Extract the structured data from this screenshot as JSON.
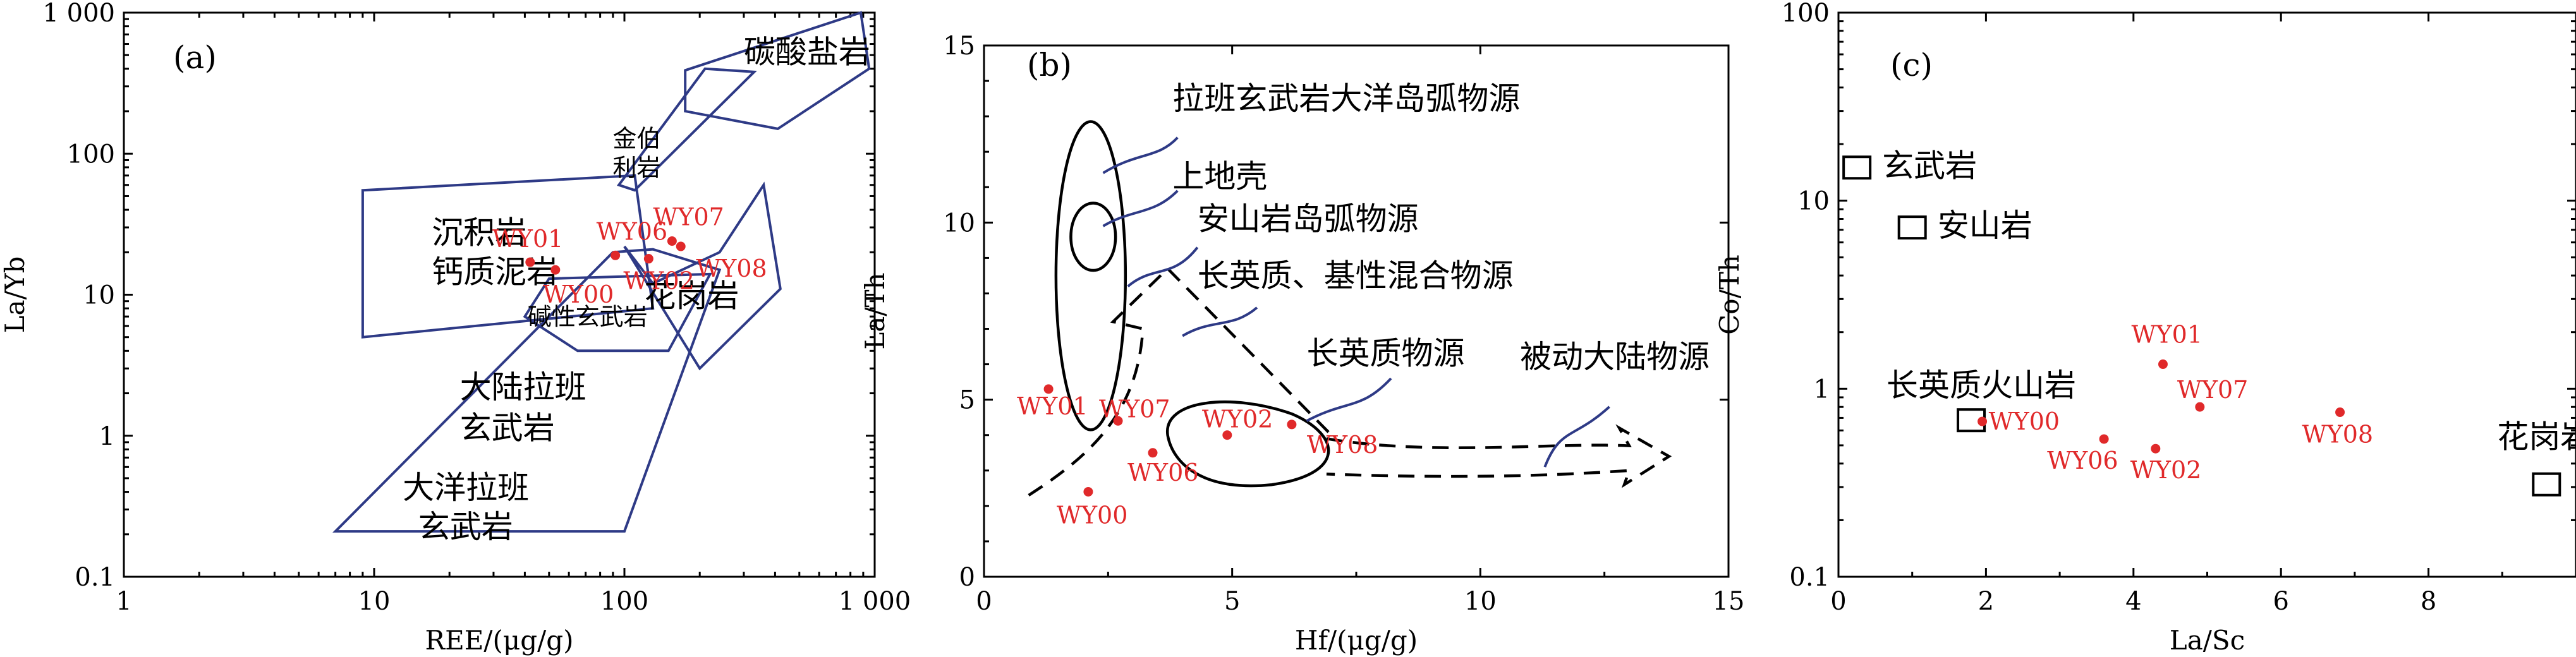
{
  "chart_data": [
    {
      "type": "scatter",
      "panel_label": "(a)",
      "xlabel": "REE/(μg/g)",
      "ylabel": "La/Yb",
      "x_scale": "log",
      "y_scale": "log",
      "xlim": [
        1,
        1000
      ],
      "ylim": [
        0.1,
        1000
      ],
      "x_ticks": [
        {
          "v": 1,
          "label": "1"
        },
        {
          "v": 10,
          "label": "10"
        },
        {
          "v": 100,
          "label": "100"
        },
        {
          "v": 1000,
          "label": "1 000"
        }
      ],
      "y_ticks": [
        {
          "v": 0.1,
          "label": "0.1"
        },
        {
          "v": 1,
          "label": "1"
        },
        {
          "v": 10,
          "label": "10"
        },
        {
          "v": 100,
          "label": "100"
        },
        {
          "v": 1000,
          "label": "1 000"
        }
      ],
      "regions": [
        {
          "label": "碳酸盐岩",
          "points": [
            [
              175,
              390
            ],
            [
              880,
              1000
            ],
            [
              950,
              400
            ],
            [
              410,
              150
            ],
            [
              175,
              200
            ]
          ]
        },
        {
          "label": "金伯利岩",
          "points": [
            [
              110,
              55
            ],
            [
              330,
              380
            ],
            [
              210,
              400
            ],
            [
              95,
              60
            ]
          ]
        },
        {
          "label": "沉积岩\n钙质泥岩",
          "points": [
            [
              9,
              55
            ],
            [
              110,
              70
            ],
            [
              130,
              8
            ],
            [
              9,
              5
            ]
          ]
        },
        {
          "label": "花岗岩",
          "points": [
            [
              100,
              22
            ],
            [
              200,
              3
            ],
            [
              420,
              11
            ],
            [
              360,
              60
            ],
            [
              240,
              20
            ],
            [
              130,
              12
            ]
          ]
        },
        {
          "label": "碱性玄武岩",
          "points": [
            [
              50,
              13
            ],
            [
              220,
              14
            ],
            [
              150,
              4
            ],
            [
              65,
              4
            ],
            [
              40,
              7
            ]
          ]
        },
        {
          "label": "大陆拉班玄武岩\n大洋拉班玄武岩",
          "points": [
            [
              7,
              0.21
            ],
            [
              100,
              0.21
            ],
            [
              240,
              15
            ],
            [
              130,
              21
            ],
            [
              90,
              20
            ]
          ]
        }
      ],
      "points": [
        {
          "label": "WY01",
          "x": 42,
          "y": 17
        },
        {
          "label": "WY00",
          "x": 53,
          "y": 15
        },
        {
          "label": "WY06",
          "x": 92,
          "y": 19
        },
        {
          "label": "WY02",
          "x": 125,
          "y": 18
        },
        {
          "label": "WY07",
          "x": 155,
          "y": 24
        },
        {
          "label": "WY08",
          "x": 168,
          "y": 22
        }
      ]
    },
    {
      "type": "scatter",
      "panel_label": "(b)",
      "xlabel": "Hf/(μg/g)",
      "ylabel": "La/Th",
      "x_scale": "linear",
      "y_scale": "linear",
      "xlim": [
        0,
        15
      ],
      "ylim": [
        0,
        15
      ],
      "x_ticks": [
        {
          "v": 0,
          "label": "0"
        },
        {
          "v": 5,
          "label": "5"
        },
        {
          "v": 10,
          "label": "10"
        },
        {
          "v": 15,
          "label": "15"
        }
      ],
      "y_ticks": [
        {
          "v": 0,
          "label": "0"
        },
        {
          "v": 5,
          "label": "5"
        },
        {
          "v": 10,
          "label": "10"
        },
        {
          "v": 15,
          "label": "15"
        }
      ],
      "regions": [
        {
          "label": "拉班玄武岩大洋岛弧物源"
        },
        {
          "label": "上地壳"
        },
        {
          "label": "安山岩岛弧物源"
        },
        {
          "label": "长英质、基性混合物源"
        },
        {
          "label": "长英质物源"
        },
        {
          "label": "被动大陆物源"
        }
      ],
      "points": [
        {
          "label": "WY01",
          "x": 1.3,
          "y": 5.3
        },
        {
          "label": "WY00",
          "x": 2.1,
          "y": 2.4
        },
        {
          "label": "WY07",
          "x": 2.7,
          "y": 4.4
        },
        {
          "label": "WY06",
          "x": 3.4,
          "y": 3.5
        },
        {
          "label": "WY02",
          "x": 4.9,
          "y": 4.0
        },
        {
          "label": "WY08",
          "x": 6.2,
          "y": 4.3
        }
      ]
    },
    {
      "type": "scatter",
      "panel_label": "(c)",
      "xlabel": "La/Sc",
      "ylabel": "Co/Th",
      "x_scale": "linear",
      "y_scale": "log",
      "xlim": [
        0,
        10
      ],
      "ylim": [
        0.1,
        100
      ],
      "x_ticks": [
        {
          "v": 0,
          "label": "0"
        },
        {
          "v": 2,
          "label": "2"
        },
        {
          "v": 4,
          "label": "4"
        },
        {
          "v": 6,
          "label": "6"
        },
        {
          "v": 8,
          "label": "8"
        }
      ],
      "y_ticks": [
        {
          "v": 0.1,
          "label": "0.1"
        },
        {
          "v": 1,
          "label": "1"
        },
        {
          "v": 10,
          "label": "10"
        },
        {
          "v": 100,
          "label": "100"
        }
      ],
      "references": [
        {
          "label": "玄武岩",
          "x": 0.25,
          "y": 15
        },
        {
          "label": "安山岩",
          "x": 1.0,
          "y": 7.2
        },
        {
          "label": "长英质火山岩",
          "x": 1.8,
          "y": 0.68
        },
        {
          "label": "花岗岩",
          "x": 9.6,
          "y": 0.31
        }
      ],
      "points": [
        {
          "label": "WY01",
          "x": 4.4,
          "y": 1.35
        },
        {
          "label": "WY07",
          "x": 4.9,
          "y": 0.8
        },
        {
          "label": "WY00",
          "x": 1.95,
          "y": 0.67
        },
        {
          "label": "WY06",
          "x": 3.6,
          "y": 0.54
        },
        {
          "label": "WY02",
          "x": 4.3,
          "y": 0.48
        },
        {
          "label": "WY08",
          "x": 6.8,
          "y": 0.75
        }
      ]
    }
  ]
}
